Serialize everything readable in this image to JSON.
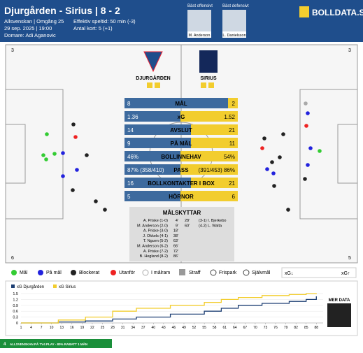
{
  "header": {
    "title": "Djurgården - Sirius | 8 - 2",
    "competition": "Allsvenskan | Omgång 25",
    "date": "29 sep. 2025 | 19:00",
    "referee": "Domare: Adi Aganovic",
    "playtime": "Effektiv speltid: 50 min (-3)",
    "cards": "Antal kort: 5 (+1)",
    "best_offensive": "Bäst offensivt",
    "best_defensive": "Bäst defensivt",
    "player_offensive": "M. Anderson",
    "player_defensive": "L. Danielsson",
    "logo": "BOLLDATA.SE"
  },
  "pitch": {
    "home_team": "DJURGÅRDEN",
    "away_team": "SIRIUS",
    "corner_top_left": "3",
    "corner_top_right": "3",
    "corner_bottom_left": "6",
    "corner_bottom_right": "5"
  },
  "stats": {
    "rows": [
      {
        "label": "MÅL",
        "home": "8",
        "away": "2"
      },
      {
        "label": "xG",
        "home": "1.36",
        "away": "1.52"
      },
      {
        "label": "AVSLUT",
        "home": "14",
        "away": "21"
      },
      {
        "label": "PÅ MÅL",
        "home": "9",
        "away": "11"
      },
      {
        "label": "BOLLINNEHAV",
        "home": "46%",
        "away": "54%"
      },
      {
        "label": "PASS",
        "home": "87% (358/410)",
        "away": "(391/453) 86%"
      },
      {
        "label": "BOLLKONTAKTER I BOX",
        "home": "16",
        "away": "21"
      },
      {
        "label": "HÖRNOR",
        "home": "5",
        "away": "6"
      }
    ]
  },
  "scorers": {
    "title": "MÅLSKYTTAR",
    "home": [
      [
        "A. Priske (1-0)",
        "4'"
      ],
      [
        "M. Anderson (2-0)",
        "9'"
      ],
      [
        "A. Priske (3-0)",
        "18'"
      ],
      [
        "J. Okkels (4-1)",
        "38'"
      ],
      [
        "T. Nguen (5-2)",
        "63'"
      ],
      [
        "M. Anderson (6-2)",
        "66'"
      ],
      [
        "A. Priske (7-2)",
        "72'"
      ],
      [
        "B. Hegland (8-2)",
        "86'"
      ]
    ],
    "away": [
      [
        "28'",
        "(3-1) I. Bjerkebo"
      ],
      [
        "60'",
        "(4-2) L. Walta"
      ]
    ]
  },
  "legend": {
    "goal": "Mål",
    "on_target": "På mål",
    "blocked": "Blockerat",
    "off_target": "Utanför",
    "post": "I målram",
    "penalty": "Straff",
    "free_kick": "Frispark",
    "own_goal": "Självmål",
    "xg_down": "xG↓",
    "xg_up": "xG↑"
  },
  "more_data": "MER DATA",
  "banner": {
    "badge": "4",
    "text": "ALLSVENSKAN PÅ TV4 PLAY - 80% RABATT 1 MÅN"
  },
  "chart_data": {
    "type": "line",
    "step": true,
    "x": [
      1,
      12,
      20,
      28,
      35,
      45,
      55,
      60,
      65,
      72,
      80,
      85,
      88
    ],
    "series": [
      {
        "name": "xG Djurgården",
        "color": "#1d3f73",
        "values": [
          0,
          0.05,
          0.1,
          0.2,
          0.3,
          0.45,
          0.6,
          0.75,
          0.9,
          1.0,
          1.1,
          1.2,
          1.36
        ]
      },
      {
        "name": "xG Sirius",
        "color": "#f2cd2e",
        "values": [
          0,
          0.15,
          0.3,
          0.6,
          0.75,
          0.9,
          1.05,
          1.2,
          1.3,
          1.4,
          1.45,
          1.5,
          1.52
        ]
      }
    ],
    "xlim": [
      1,
      90
    ],
    "ylim": [
      0,
      1.5
    ],
    "yticks": [
      0,
      0.3,
      0.6,
      0.9,
      1.2,
      1.5
    ],
    "xticks": [
      1,
      4,
      7,
      10,
      13,
      16,
      19,
      22,
      25,
      28,
      31,
      34,
      37,
      40,
      43,
      46,
      49,
      52,
      55,
      58,
      61,
      64,
      67,
      70,
      73,
      76,
      79,
      82,
      85,
      88
    ]
  }
}
